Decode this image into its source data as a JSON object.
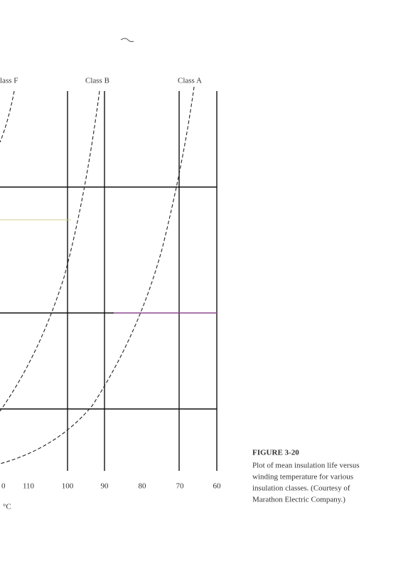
{
  "figure": {
    "curve_labels": [
      "lass F",
      "Class B",
      "Class A"
    ],
    "x_tick_labels": [
      "0",
      "110",
      "100",
      "90",
      "80",
      "70",
      "60"
    ],
    "x_unit": "°C",
    "caption": {
      "number": "FIGURE 3-20",
      "lines": [
        "Plot of mean insulation life versus",
        "winding temperature for various",
        "insulation classes. (Courtesy of",
        "Marathon Electric Company.)"
      ]
    }
  }
}
